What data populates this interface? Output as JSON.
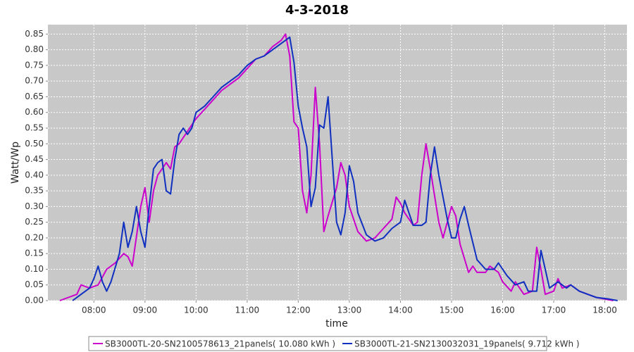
{
  "chart_data": {
    "type": "line",
    "title": "4-3-2018",
    "x_label": "time",
    "y_label": "Watt/Wp",
    "xlim": [
      "07:06",
      "18:26"
    ],
    "xticks": [
      "08:00",
      "09:00",
      "10:00",
      "11:00",
      "12:00",
      "13:00",
      "14:00",
      "15:00",
      "16:00",
      "17:00",
      "18:00"
    ],
    "ylim": [
      0,
      0.88
    ],
    "yticks": [
      {
        "value": 0,
        "label": "0.00"
      },
      0.05,
      {
        "value": 0.1,
        "label": "0.10"
      },
      0.15,
      {
        "value": 0.2,
        "label": "0.20"
      },
      0.25,
      {
        "value": 0.3,
        "label": "0.30"
      },
      0.35,
      {
        "value": 0.4,
        "label": "0.40"
      },
      0.45,
      {
        "value": 0.5,
        "label": "0.50"
      },
      0.55,
      {
        "value": 0.6,
        "label": "0.60"
      },
      0.65,
      {
        "value": 0.7,
        "label": "0.70"
      },
      0.75,
      {
        "value": 0.8,
        "label": "0.80"
      },
      0.85
    ],
    "grid": true,
    "series": [
      {
        "name": "SB3000TL-20-SN2100578613_21panels( 10.080 kWh )",
        "color": "#cc00cc",
        "x": [
          "07:20",
          "07:30",
          "07:40",
          "07:45",
          "07:50",
          "07:55",
          "08:05",
          "08:15",
          "08:25",
          "08:35",
          "08:40",
          "08:45",
          "08:55",
          "09:00",
          "09:05",
          "09:10",
          "09:15",
          "09:20",
          "09:25",
          "09:30",
          "09:35",
          "09:40",
          "09:50",
          "10:00",
          "10:10",
          "10:20",
          "10:30",
          "10:40",
          "10:50",
          "11:00",
          "11:10",
          "11:20",
          "11:30",
          "11:40",
          "11:45",
          "11:50",
          "11:55",
          "12:00",
          "12:05",
          "12:10",
          "12:15",
          "12:20",
          "12:25",
          "12:30",
          "12:35",
          "12:45",
          "12:50",
          "12:55",
          "13:00",
          "13:10",
          "13:20",
          "13:30",
          "13:40",
          "13:50",
          "13:55",
          "14:00",
          "14:05",
          "14:15",
          "14:20",
          "14:25",
          "14:30",
          "14:35",
          "14:45",
          "14:50",
          "14:55",
          "15:00",
          "15:05",
          "15:10",
          "15:20",
          "15:25",
          "15:30",
          "15:40",
          "15:45",
          "15:55",
          "16:00",
          "16:10",
          "16:15",
          "16:25",
          "16:35",
          "16:40",
          "16:45",
          "16:50",
          "17:00",
          "17:05",
          "17:10",
          "17:20",
          "17:30",
          "17:40",
          "17:50",
          "18:00",
          "18:10"
        ],
        "values": [
          0,
          0.01,
          0.02,
          0.05,
          0.045,
          0.04,
          0.05,
          0.1,
          0.12,
          0.15,
          0.14,
          0.11,
          0.3,
          0.36,
          0.25,
          0.35,
          0.4,
          0.42,
          0.44,
          0.42,
          0.49,
          0.5,
          0.54,
          0.58,
          0.61,
          0.64,
          0.67,
          0.69,
          0.71,
          0.74,
          0.77,
          0.78,
          0.81,
          0.83,
          0.85,
          0.78,
          0.57,
          0.55,
          0.35,
          0.28,
          0.4,
          0.68,
          0.5,
          0.22,
          0.27,
          0.36,
          0.44,
          0.4,
          0.3,
          0.22,
          0.19,
          0.2,
          0.23,
          0.26,
          0.33,
          0.31,
          0.28,
          0.24,
          0.25,
          0.4,
          0.5,
          0.42,
          0.25,
          0.2,
          0.25,
          0.3,
          0.27,
          0.18,
          0.09,
          0.11,
          0.09,
          0.09,
          0.11,
          0.09,
          0.06,
          0.03,
          0.06,
          0.02,
          0.03,
          0.17,
          0.1,
          0.02,
          0.03,
          0.07,
          0.04,
          0.05,
          0.03,
          0.02,
          0.01,
          0.005,
          0
        ]
      },
      {
        "name": "SB3000TL-21-SN2130032031_19panels( 9.712 kWh )",
        "color": "#1030c0",
        "x": [
          "07:35",
          "07:45",
          "07:55",
          "08:00",
          "08:05",
          "08:10",
          "08:15",
          "08:20",
          "08:30",
          "08:35",
          "08:40",
          "08:45",
          "08:50",
          "08:55",
          "09:00",
          "09:05",
          "09:10",
          "09:15",
          "09:20",
          "09:25",
          "09:30",
          "09:35",
          "09:40",
          "09:45",
          "09:50",
          "09:55",
          "10:00",
          "10:10",
          "10:20",
          "10:30",
          "10:40",
          "10:50",
          "11:00",
          "11:10",
          "11:20",
          "11:30",
          "11:40",
          "11:50",
          "11:55",
          "12:00",
          "12:05",
          "12:10",
          "12:15",
          "12:20",
          "12:25",
          "12:30",
          "12:35",
          "12:40",
          "12:45",
          "12:50",
          "12:55",
          "13:00",
          "13:05",
          "13:10",
          "13:20",
          "13:30",
          "13:40",
          "13:50",
          "14:00",
          "14:05",
          "14:10",
          "14:15",
          "14:25",
          "14:30",
          "14:35",
          "14:40",
          "14:45",
          "14:55",
          "15:00",
          "15:05",
          "15:10",
          "15:15",
          "15:20",
          "15:30",
          "15:40",
          "15:50",
          "15:55",
          "16:05",
          "16:15",
          "16:25",
          "16:30",
          "16:40",
          "16:45",
          "16:50",
          "16:55",
          "17:05",
          "17:15",
          "17:20",
          "17:30",
          "17:40",
          "17:50",
          "18:05",
          "18:15"
        ],
        "values": [
          0,
          0.02,
          0.04,
          0.07,
          0.11,
          0.06,
          0.03,
          0.06,
          0.15,
          0.25,
          0.17,
          0.22,
          0.3,
          0.22,
          0.17,
          0.3,
          0.42,
          0.44,
          0.45,
          0.35,
          0.34,
          0.45,
          0.53,
          0.55,
          0.53,
          0.55,
          0.6,
          0.62,
          0.65,
          0.68,
          0.7,
          0.72,
          0.75,
          0.77,
          0.78,
          0.8,
          0.82,
          0.84,
          0.76,
          0.62,
          0.55,
          0.49,
          0.3,
          0.36,
          0.56,
          0.55,
          0.65,
          0.45,
          0.25,
          0.21,
          0.28,
          0.43,
          0.38,
          0.28,
          0.21,
          0.19,
          0.2,
          0.23,
          0.25,
          0.32,
          0.28,
          0.24,
          0.24,
          0.25,
          0.4,
          0.49,
          0.4,
          0.26,
          0.2,
          0.2,
          0.26,
          0.3,
          0.24,
          0.13,
          0.1,
          0.1,
          0.12,
          0.08,
          0.05,
          0.06,
          0.03,
          0.03,
          0.16,
          0.1,
          0.04,
          0.06,
          0.04,
          0.05,
          0.03,
          0.02,
          0.01,
          0.005,
          0
        ]
      }
    ]
  }
}
